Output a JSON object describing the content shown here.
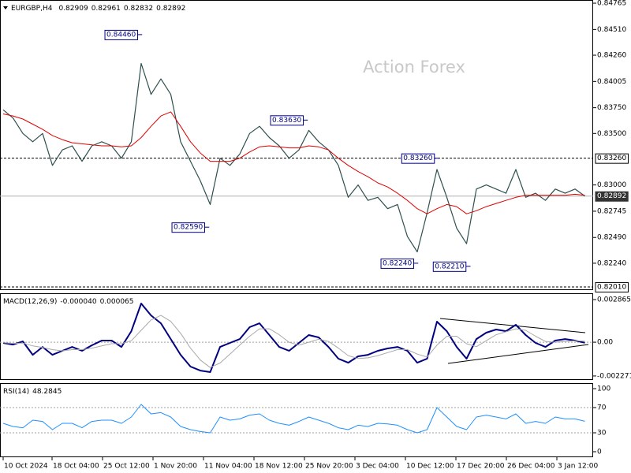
{
  "chart_data": [
    {
      "type": "line",
      "title": "EURGBP,H4",
      "readout": [
        0.82909,
        0.82961,
        0.82832,
        0.82892
      ],
      "watermark": "Action Forex",
      "xlim": [
        -0.32,
        59.84
      ],
      "ylim": [
        0.81979,
        0.84796
      ],
      "yticks": [
        {
          "value": 0.84765,
          "label": "0.84765"
        },
        {
          "value": 0.8451,
          "label": "0.84510"
        },
        {
          "value": 0.8426,
          "label": "0.84260"
        },
        {
          "value": 0.84005,
          "label": "0.84005"
        },
        {
          "value": 0.8375,
          "label": "0.83750"
        },
        {
          "value": 0.835,
          "label": "0.83500"
        },
        {
          "value": 0.83,
          "label": "0.83000"
        },
        {
          "value": 0.82745,
          "label": "0.82745"
        },
        {
          "value": 0.8249,
          "label": "0.82490"
        },
        {
          "value": 0.8224,
          "label": "0.82240"
        }
      ],
      "levels": [
        {
          "value": 0.8326,
          "label": "0.83260"
        },
        {
          "value": 0.8201,
          "label": "0.82010"
        }
      ],
      "series": [
        {
          "color": "#2f4f4f",
          "line_width": 1.2,
          "values": [
            0.8373,
            0.8365,
            0.835,
            0.8342,
            0.835,
            0.8319,
            0.8334,
            0.8338,
            0.8323,
            0.8338,
            0.8342,
            0.8338,
            0.8326,
            0.8342,
            0.8418,
            0.8388,
            0.8403,
            0.8388,
            0.8342,
            0.8323,
            0.8304,
            0.8281,
            0.8326,
            0.8319,
            0.833,
            0.835,
            0.8357,
            0.8346,
            0.8338,
            0.8326,
            0.8334,
            0.8353,
            0.8342,
            0.8334,
            0.8319,
            0.8288,
            0.83,
            0.8285,
            0.8288,
            0.8277,
            0.8281,
            0.825,
            0.8235,
            0.8273,
            0.8315,
            0.8288,
            0.8258,
            0.8243,
            0.8296,
            0.83,
            0.8296,
            0.8292,
            0.8315,
            0.8288,
            0.8292,
            0.8285,
            0.8296,
            0.8292,
            0.8296,
            0.82892
          ]
        },
        {
          "color": "#e00000",
          "line_width": 1,
          "values": [
            0.8369,
            0.8367,
            0.8364,
            0.8359,
            0.8354,
            0.8348,
            0.8344,
            0.8341,
            0.834,
            0.8339,
            0.8338,
            0.8338,
            0.8337,
            0.8338,
            0.8346,
            0.8357,
            0.8367,
            0.8371,
            0.8357,
            0.8342,
            0.8331,
            0.8323,
            0.8323,
            0.8323,
            0.8326,
            0.8332,
            0.8337,
            0.8338,
            0.8337,
            0.8336,
            0.8336,
            0.8338,
            0.8337,
            0.8334,
            0.8326,
            0.8319,
            0.8313,
            0.8308,
            0.8302,
            0.8298,
            0.8292,
            0.8285,
            0.8277,
            0.8272,
            0.8277,
            0.8281,
            0.8279,
            0.8272,
            0.8275,
            0.8279,
            0.8282,
            0.8285,
            0.8288,
            0.829,
            0.829,
            0.829,
            0.829,
            0.829,
            0.8291,
            0.829
          ]
        }
      ],
      "annotations": [
        {
          "value": 0.8446,
          "label": "0.84460",
          "x": 14.1
        },
        {
          "value": 0.8363,
          "label": "0.83630",
          "x": 30.9
        },
        {
          "value": 0.8326,
          "label": "0.83260",
          "x": 44.2
        },
        {
          "value": 0.8259,
          "label": "0.82590",
          "x": 20.9
        },
        {
          "value": 0.8224,
          "label": "0.82240",
          "x": 42.1
        },
        {
          "value": 0.8221,
          "label": "0.82210",
          "x": 47.4
        }
      ]
    },
    {
      "type": "line",
      "title": "MACD(12,26,9)",
      "readout": [
        {
          "value": -4e-05,
          "label": "-0.000040"
        },
        6.5e-05
      ],
      "xlim": [
        -0.32,
        59.84
      ],
      "ylim": [
        -0.00254,
        0.00329
      ],
      "yticks": [
        0.002865,
        {
          "value": 0,
          "label": "0.00"
        },
        -0.002271
      ],
      "levels": [
        0
      ],
      "series": [
        {
          "color": "#000080",
          "line_width": 2,
          "values": [
            -5e-05,
            -0.00016,
            5e-05,
            -0.00085,
            -0.00032,
            -0.00085,
            -0.00058,
            -0.00032,
            -0.00058,
            -0.00021,
            0.00011,
            0.00011,
            -0.00032,
            0.00074,
            0.0026,
            0.0018,
            0.00127,
            0.00021,
            -0.00085,
            -0.00164,
            -0.00191,
            -0.00201,
            -0.00032,
            -5e-05,
            0.00021,
            0.00101,
            0.00127,
            0.00048,
            -0.00032,
            -0.00058,
            -5e-05,
            0.00048,
            0.00032,
            -0.00032,
            -0.00111,
            -0.00138,
            -0.00095,
            -0.00085,
            -0.00058,
            -0.00042,
            -0.00032,
            -0.00058,
            -0.00138,
            -0.00111,
            0.00138,
            0.00074,
            -0.00032,
            -0.00111,
            0.00021,
            0.00064,
            0.00085,
            0.00074,
            0.00117,
            0.00048,
            -5e-05,
            -0.00032,
            0.00011,
            0.00021,
            0.00011,
            -4e-05
          ]
        },
        {
          "color": "#a9a9a9",
          "line_width": 1,
          "values": [
            -3e-05,
            -8e-05,
            -6e-05,
            -0.00025,
            -0.00035,
            -0.0005,
            -0.00058,
            -0.0005,
            -0.0005,
            -0.0004,
            -0.00025,
            -0.0001,
            -0.0001,
            0.0001,
            0.0008,
            0.0015,
            0.0018,
            0.0014,
            0.0006,
            -0.0004,
            -0.0012,
            -0.0017,
            -0.0014,
            -0.0008,
            -0.0002,
            0.0004,
            0.0009,
            0.0009,
            0.0005,
            0,
            -0.0002,
            0,
            0.0002,
            5e-05,
            -0.0004,
            -0.0009,
            -0.0011,
            -0.00105,
            -0.0009,
            -0.0007,
            -0.0005,
            -0.0005,
            -0.0008,
            -0.001,
            -0.0002,
            0.0004,
            0.0004,
            -0.0001,
            -0.0003,
            0.0001,
            0.0005,
            0.0007,
            0.0009,
            0.0008,
            0.0004,
            5e-05,
            0,
            5e-05,
            0.0001,
            6.5e-05
          ]
        }
      ]
    },
    {
      "type": "line",
      "title": "RSI(14)",
      "readout": [
        48.2845
      ],
      "xlim": [
        -0.32,
        59.84
      ],
      "ylim": [
        -8.75,
        108.75
      ],
      "yticks": [
        100,
        70,
        30,
        0
      ],
      "levels": [
        70,
        30
      ],
      "series": [
        {
          "color": "#1e90ff",
          "line_width": 1,
          "values": [
            45,
            40,
            38,
            50,
            48,
            35,
            45,
            45,
            38,
            48,
            50,
            50,
            45,
            55,
            75,
            60,
            62,
            55,
            40,
            35,
            32,
            30,
            55,
            50,
            52,
            58,
            60,
            50,
            45,
            42,
            48,
            55,
            50,
            45,
            38,
            35,
            42,
            40,
            45,
            44,
            42,
            35,
            30,
            35,
            70,
            55,
            40,
            35,
            55,
            58,
            55,
            52,
            60,
            45,
            48,
            45,
            55,
            52,
            52,
            48.2845
          ]
        }
      ],
      "xticks": [
        {
          "value": 0,
          "label": "10 Oct 2024"
        },
        {
          "value": 4.96,
          "label": "18 Oct 04:00"
        },
        {
          "value": 10.08,
          "label": "25 Oct 12:00"
        },
        {
          "value": 15.2,
          "label": "1 Nov 20:00"
        },
        {
          "value": 20.32,
          "label": "11 Nov 04:00"
        },
        {
          "value": 25.44,
          "label": "18 Nov 12:00"
        },
        {
          "value": 30.56,
          "label": "25 Nov 20:00"
        },
        {
          "value": 35.68,
          "label": "3 Dec 04:00"
        },
        {
          "value": 40.8,
          "label": "10 Dec 12:00"
        },
        {
          "value": 45.92,
          "label": "17 Dec 20:00"
        },
        {
          "value": 51.04,
          "label": "26 Dec 04:00"
        },
        {
          "value": 56.16,
          "label": "3 Jan 12:00"
        }
      ]
    }
  ]
}
